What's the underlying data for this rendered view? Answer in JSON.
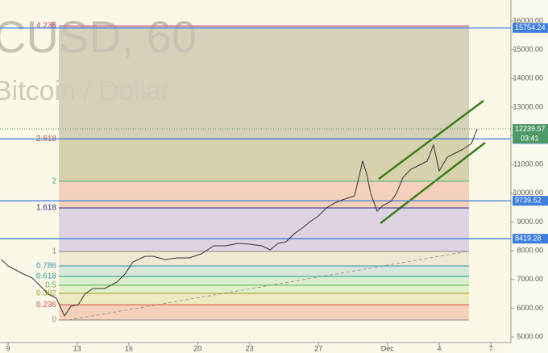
{
  "chart_data": {
    "type": "line",
    "title": "CUSD, 60",
    "subtitle": "Bitcoin / Dollar",
    "xlim": [
      -0.47,
      29.16
    ],
    "xticks": [
      {
        "value": 0,
        "label": "9"
      },
      {
        "value": 4,
        "label": "13"
      },
      {
        "value": 7,
        "label": "16"
      },
      {
        "value": 11,
        "label": "20"
      },
      {
        "value": 14,
        "label": "23"
      },
      {
        "value": 18,
        "label": "27"
      },
      {
        "value": 22,
        "label": "Dec"
      },
      {
        "value": 25,
        "label": "4"
      },
      {
        "value": 28,
        "label": "7"
      }
    ],
    "ylim": [
      4440,
      16730
    ],
    "yticks": [
      {
        "value": 5000,
        "label": "5000.00"
      },
      {
        "value": 6000,
        "label": "6000.00"
      },
      {
        "value": 7000,
        "label": "7000.00"
      },
      {
        "value": 8000,
        "label": "8000.00"
      },
      {
        "value": 9000,
        "label": "9000.00"
      },
      {
        "value": 10000,
        "label": "10000.00"
      },
      {
        "value": 11000,
        "label": "11000.00"
      },
      {
        "value": 12000,
        "label": "12000.00"
      },
      {
        "value": 13000,
        "label": "13000.00"
      },
      {
        "value": 14000,
        "label": "14000.00"
      },
      {
        "value": 15000,
        "label": "15000.00"
      },
      {
        "value": 16000,
        "label": "16000.00"
      }
    ],
    "color": "#333333",
    "x": [
      -0.4,
      0,
      0.7,
      1.4,
      1.87,
      2.34,
      2.8,
      3.27,
      3.64,
      4.07,
      4.44,
      4.91,
      5.61,
      6.31,
      6.78,
      7.24,
      7.94,
      8.41,
      9.11,
      9.81,
      10.51,
      11.21,
      11.92,
      12.62,
      13.32,
      14.02,
      14.72,
      15.19,
      15.65,
      16.12,
      16.59,
      17.06,
      17.52,
      17.99,
      18.46,
      18.93,
      19.39,
      20.09,
      20.56,
      20.79,
      21.03,
      21.4,
      21.73,
      22.2,
      22.52,
      22.9,
      23.36,
      23.83,
      24.3,
      24.67,
      25,
      25.47,
      25.93,
      26.4,
      26.87,
      27.2
    ],
    "values": [
      7694,
      7470,
      7245,
      7049,
      6768,
      6488,
      6347,
      5730,
      6067,
      6123,
      6488,
      6684,
      6684,
      6909,
      7189,
      7610,
      7806,
      7806,
      7694,
      7750,
      7750,
      7891,
      8171,
      8171,
      8255,
      8227,
      8171,
      8031,
      8255,
      8312,
      8592,
      8789,
      9013,
      9209,
      9490,
      9658,
      9771,
      9911,
      11118,
      10697,
      9995,
      9378,
      9574,
      9715,
      9995,
      10556,
      10837,
      10977,
      11118,
      11679,
      10781,
      11258,
      11398,
      11538,
      11735,
      12239.57
    ],
    "fib_levels": [
      {
        "ratio": 4.236,
        "value": 15830,
        "color": "#c2457a",
        "fill": "#cfcbb0"
      },
      {
        "ratio": 2.618,
        "value": 11900,
        "color": "#c84a4a",
        "fill": "#cfcba2"
      },
      {
        "ratio": 2,
        "value": 10420,
        "color": "#3ab07a",
        "fill": "#f3c9b1"
      },
      {
        "ratio": 1.618,
        "value": 9490,
        "color": "#2c2c8c",
        "fill": "#d7cde0"
      },
      {
        "ratio": 1,
        "value": 7975,
        "color": "#8a8a8a",
        "fill": "#ece6cf"
      },
      {
        "ratio": 0.786,
        "value": 7470,
        "color": "#3a8fa8",
        "fill": "#cfe3d6"
      },
      {
        "ratio": 0.618,
        "value": 7105,
        "color": "#2aa08f",
        "fill": "#d4ecc9"
      },
      {
        "ratio": 0.5,
        "value": 6800,
        "color": "#58b050",
        "fill": "#dcefc0"
      },
      {
        "ratio": 0.382,
        "value": 6515,
        "color": "#a0a030",
        "fill": "#ebe7b8"
      },
      {
        "ratio": 0.236,
        "value": 6120,
        "color": "#e04848",
        "fill": "#f3c9b1"
      },
      {
        "ratio": 0,
        "value": 5590,
        "color": "#8a8a8a"
      }
    ],
    "price_lines": [
      15754.24,
      11892.63,
      9739.52,
      8419.28
    ],
    "last_price": 12239.57,
    "countdown": "03:41"
  }
}
